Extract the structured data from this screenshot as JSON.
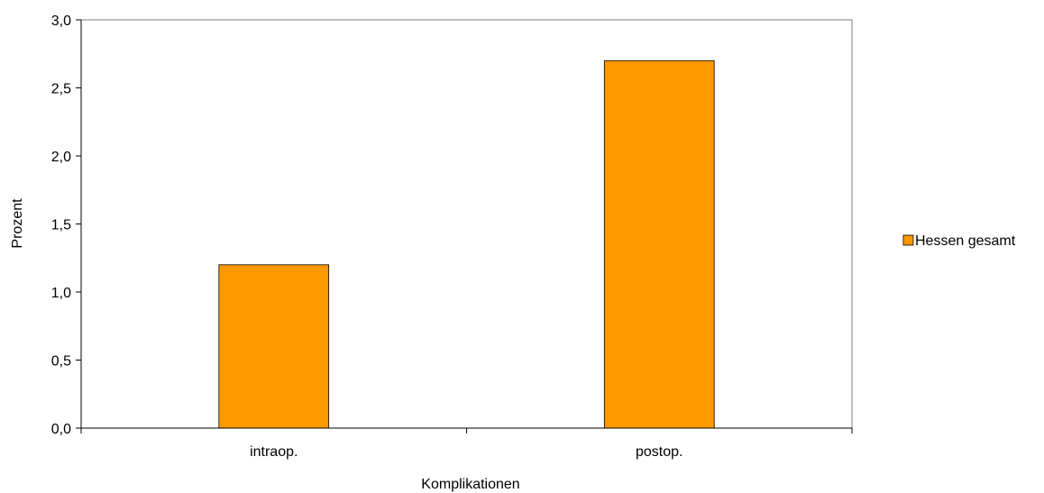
{
  "chart_data": {
    "type": "bar",
    "categories": [
      "intraop.",
      "postop."
    ],
    "series": [
      {
        "name": "Hessen gesamt",
        "values": [
          1.2,
          2.7
        ],
        "color": "#FF9900"
      }
    ],
    "xlabel": "Komplikationen",
    "ylabel": "Prozent",
    "ylim": [
      0,
      3.0
    ],
    "yticks": [
      "0,0",
      "0,5",
      "1,0",
      "1,5",
      "2,0",
      "2,5",
      "3,0"
    ],
    "grid": false,
    "legend": "right"
  }
}
